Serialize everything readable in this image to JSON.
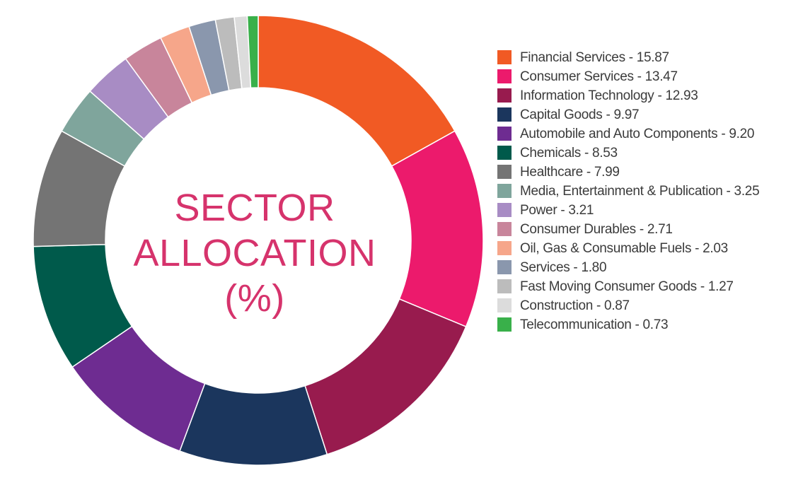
{
  "chart_data": {
    "type": "pie",
    "title_lines": [
      "SECTOR",
      "ALLOCATION",
      "(%)"
    ],
    "title_color": "#d6336c",
    "legend_placement": "right",
    "slices": [
      {
        "name": "Financial Services",
        "value": 15.87,
        "color": "#f15a24",
        "legend_text": "Financial Services - 15.87"
      },
      {
        "name": "Consumer Services",
        "value": 13.47,
        "color": "#ec1a6c",
        "legend_text": "Consumer Services - 13.47"
      },
      {
        "name": "Information Technology",
        "value": 12.93,
        "color": "#981b4e",
        "legend_text": "Information Technology - 12.93"
      },
      {
        "name": "Capital Goods",
        "value": 9.97,
        "color": "#1b365d",
        "legend_text": "Capital Goods - 9.97"
      },
      {
        "name": "Automobile and Auto Components",
        "value": 9.2,
        "color": "#6e2c91",
        "legend_text": "Automobile and Auto Components - 9.20"
      },
      {
        "name": "Chemicals",
        "value": 8.53,
        "color": "#005a4b",
        "legend_text": "Chemicals - 8.53"
      },
      {
        "name": "Healthcare",
        "value": 7.99,
        "color": "#747474",
        "legend_text": "Healthcare - 7.99"
      },
      {
        "name": "Media, Entertainment & Publication",
        "value": 3.25,
        "color": "#7fa59c",
        "legend_text": "Media, Entertainment & Publication - 3.25"
      },
      {
        "name": "Power",
        "value": 3.21,
        "color": "#a88cc4",
        "legend_text": "Power - 3.21"
      },
      {
        "name": "Consumer Durables",
        "value": 2.71,
        "color": "#c8859b",
        "legend_text": "Consumer Durables - 2.71"
      },
      {
        "name": "Oil, Gas & Consumable Fuels",
        "value": 2.03,
        "color": "#f6a68a",
        "legend_text": "Oil, Gas & Consumable Fuels - 2.03"
      },
      {
        "name": "Services",
        "value": 1.8,
        "color": "#8a97ad",
        "legend_text": "Services - 1.80"
      },
      {
        "name": "Fast Moving Consumer Goods",
        "value": 1.27,
        "color": "#bcbcbc",
        "legend_text": "Fast Moving Consumer Goods - 1.27"
      },
      {
        "name": "Construction",
        "value": 0.87,
        "color": "#dcdcdc",
        "legend_text": "Construction - 0.87"
      },
      {
        "name": "Telecommunication",
        "value": 0.73,
        "color": "#39b04a",
        "legend_text": "Telecommunication - 0.73"
      }
    ]
  }
}
